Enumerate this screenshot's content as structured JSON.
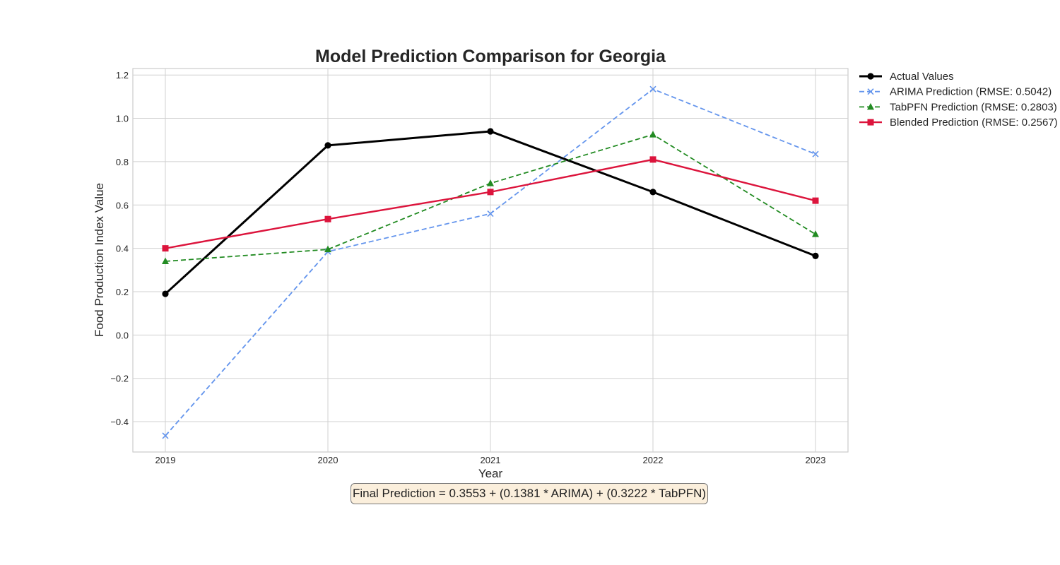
{
  "chart_data": {
    "type": "line",
    "title": "Model Prediction Comparison for Georgia",
    "xlabel": "Year",
    "ylabel": "Food Production Index Value",
    "x": [
      "2019",
      "2020",
      "2021",
      "2022",
      "2023"
    ],
    "ylim": [
      -0.54,
      1.23
    ],
    "yticks": [
      "−0.4",
      "−0.2",
      "0.0",
      "0.2",
      "0.4",
      "0.6",
      "0.8",
      "1.0",
      "1.2"
    ],
    "ytick_values": [
      -0.4,
      -0.2,
      0.0,
      0.2,
      0.4,
      0.6,
      0.8,
      1.0,
      1.2
    ],
    "grid": true,
    "legend_position": "outside-top-right",
    "series": [
      {
        "name": "Actual Values",
        "values": [
          0.19,
          0.875,
          0.94,
          0.66,
          0.365
        ],
        "color": "#000000",
        "style": "solid",
        "marker": "circle"
      },
      {
        "name": "ARIMA Prediction (RMSE: 0.5042)",
        "values": [
          -0.465,
          0.385,
          0.56,
          1.135,
          0.835
        ],
        "color": "#6495ed",
        "style": "dashed",
        "marker": "x"
      },
      {
        "name": "TabPFN Prediction (RMSE: 0.2803)",
        "values": [
          0.34,
          0.395,
          0.7,
          0.925,
          0.465
        ],
        "color": "#228b22",
        "style": "dashed",
        "marker": "triangle"
      },
      {
        "name": "Blended Prediction (RMSE: 0.2567)",
        "values": [
          0.4,
          0.535,
          0.66,
          0.81,
          0.62
        ],
        "color": "#dc143c",
        "style": "solid",
        "marker": "square"
      }
    ],
    "annotation": "Final Prediction = 0.3553 + (0.1381 * ARIMA) + (0.3222 * TabPFN)"
  }
}
